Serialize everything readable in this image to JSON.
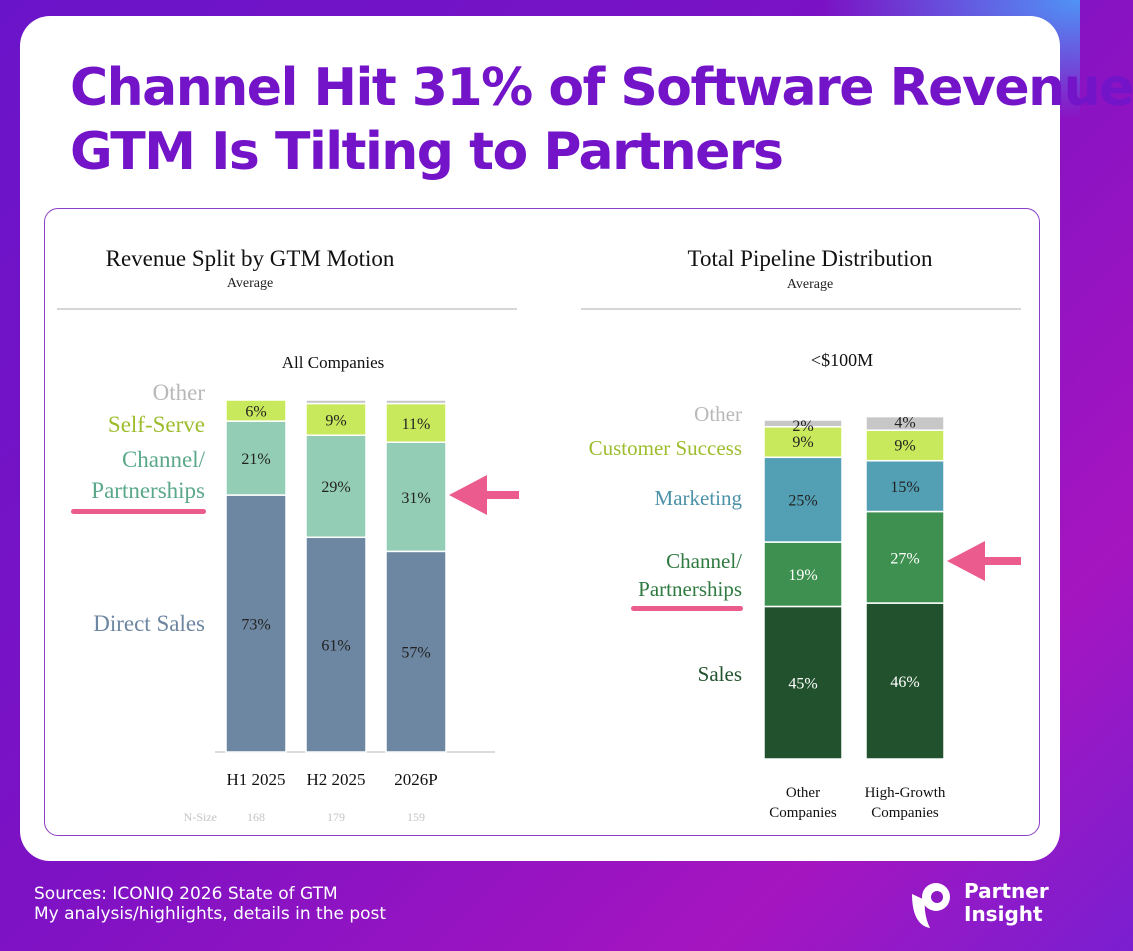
{
  "headline": {
    "line1": "Channel Hit 31% of Software Revenue",
    "line2": "GTM Is Tilting to Partners"
  },
  "colors": {
    "brand_purple": "#7314c9",
    "highlight_pink": "#ec5b8d"
  },
  "chart_data": [
    {
      "type": "bar",
      "stacked": true,
      "title": "Revenue Split by GTM Motion",
      "subtitle": "Average",
      "group_label": "All Companies",
      "categories": [
        "H1 2025",
        "H2 2025",
        "2026P"
      ],
      "n_size_label": "N-Size",
      "n_size": [
        "168",
        "179",
        "159"
      ],
      "ylim": [
        0,
        100
      ],
      "series": [
        {
          "name": "Direct Sales",
          "color": "#6d86a1",
          "values": [
            73,
            61,
            57
          ],
          "labels": [
            "73%",
            "61%",
            "57%"
          ]
        },
        {
          "name": "Channel/ Partnerships",
          "color": "#93cdb5",
          "values": [
            21,
            29,
            31
          ],
          "labels": [
            "21%",
            "29%",
            "31%"
          ]
        },
        {
          "name": "Self-Serve",
          "color": "#c9e95c",
          "values": [
            6,
            9,
            11
          ],
          "labels": [
            "6%",
            "9%",
            "11%"
          ]
        },
        {
          "name": "Other",
          "color": "#c7c7c7",
          "values": [
            0,
            1,
            1
          ],
          "labels": [
            "",
            "",
            ""
          ]
        }
      ]
    },
    {
      "type": "bar",
      "stacked": true,
      "title": "Total Pipeline Distribution",
      "subtitle": "Average",
      "group_label": "<$100M",
      "categories": [
        "Other Companies",
        "High-Growth Companies"
      ],
      "ylim": [
        0,
        100
      ],
      "series": [
        {
          "name": "Sales",
          "color": "#22522d",
          "values": [
            45,
            46
          ],
          "labels": [
            "45%",
            "46%"
          ]
        },
        {
          "name": "Channel/ Partnerships",
          "color": "#3d904f",
          "values": [
            19,
            27
          ],
          "labels": [
            "19%",
            "27%"
          ]
        },
        {
          "name": "Marketing",
          "color": "#53a0b5",
          "values": [
            25,
            15
          ],
          "labels": [
            "25%",
            "15%"
          ]
        },
        {
          "name": "Customer Success",
          "color": "#c9e95c",
          "values": [
            9,
            9
          ],
          "labels": [
            "9%",
            "9%"
          ]
        },
        {
          "name": "Other",
          "color": "#c7c7c7",
          "values": [
            2,
            4
          ],
          "labels": [
            "2%",
            "4%"
          ]
        }
      ]
    }
  ],
  "footer": {
    "line1": "Sources: ICONIQ 2026 State of GTM",
    "line2": "My analysis/highlights, details in the post"
  },
  "logo": {
    "line1": "Partner",
    "line2": "Insight",
    "icon": "partner-insight-logo-icon"
  }
}
